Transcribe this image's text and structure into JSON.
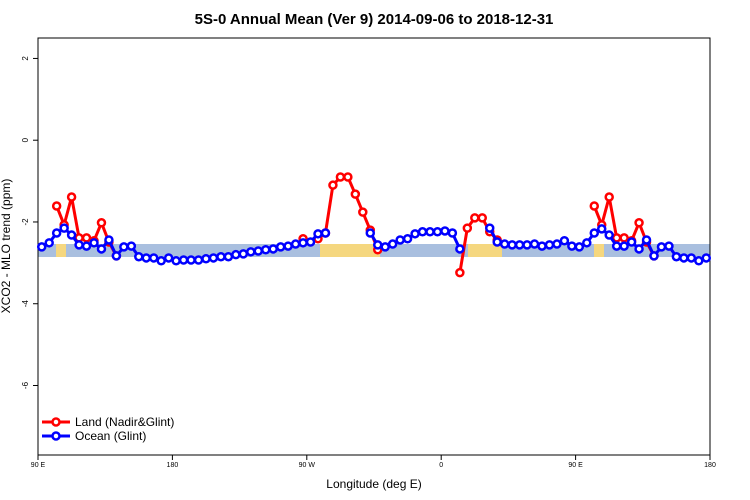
{
  "chart_data": {
    "type": "line",
    "title": "5S-0 Annual Mean (Ver 9)   2014-09-06 to 2018-12-31",
    "x_label": "Longitude (deg E)",
    "y_label": "XCO2 - MLO trend (ppm)",
    "xlim": [
      90,
      540
    ],
    "xticks": [
      {
        "value": 90,
        "label": "90 E"
      },
      180,
      {
        "value": 270,
        "label": "90 W"
      },
      {
        "value": 360,
        "label": "0"
      },
      {
        "value": 450,
        "label": "90 E"
      },
      {
        "value": 540,
        "label": "180"
      }
    ],
    "ylim": [
      -7.7,
      2.5
    ],
    "yticks": [
      -6,
      -4,
      -2,
      0,
      2
    ],
    "legend": "bottom-left",
    "x": [
      92.5,
      97.5,
      102.5,
      107.5,
      112.5,
      117.5,
      122.5,
      127.5,
      132.5,
      137.5,
      142.5,
      147.5,
      152.5,
      157.5,
      162.5,
      167.5,
      172.5,
      177.5,
      182.5,
      187.5,
      192.5,
      197.5,
      202.5,
      207.5,
      212.5,
      217.5,
      222.5,
      227.5,
      232.5,
      237.5,
      242.5,
      247.5,
      252.5,
      257.5,
      262.5,
      267.5,
      272.5,
      277.5,
      282.5,
      287.5,
      292.5,
      297.5,
      302.5,
      307.5,
      312.5,
      317.5,
      322.5,
      327.5,
      332.5,
      337.5,
      342.5,
      347.5,
      352.5,
      357.5,
      362.5,
      367.5,
      372.5,
      377.5,
      382.5,
      387.5,
      392.5,
      397.5,
      402.5,
      407.5,
      412.5,
      417.5,
      422.5,
      427.5,
      432.5,
      437.5,
      442.5,
      447.5,
      452.5,
      457.5,
      462.5,
      467.5,
      472.5,
      477.5,
      482.5,
      487.5,
      492.5,
      497.5,
      502.5,
      507.5,
      512.5,
      517.5,
      522.5,
      527.5,
      532.5,
      537.5
    ],
    "series": [
      {
        "name": "Land (Nadir&Glint)",
        "color": "#ff0000",
        "values": [
          null,
          null,
          -1.61,
          -2.07,
          -1.39,
          -2.39,
          -2.39,
          -2.46,
          -2.02,
          -2.49,
          -2.83,
          null,
          null,
          null,
          null,
          null,
          null,
          null,
          null,
          null,
          null,
          null,
          null,
          null,
          null,
          null,
          null,
          null,
          null,
          null,
          null,
          null,
          null,
          null,
          null,
          -2.41,
          null,
          -2.41,
          -2.27,
          -1.1,
          -0.9,
          -0.9,
          -1.32,
          -1.76,
          -2.2,
          -2.68,
          null,
          null,
          null,
          null,
          null,
          null,
          null,
          null,
          null,
          null,
          -3.24,
          -2.15,
          -1.9,
          -1.9,
          -2.24,
          -2.44,
          null,
          null,
          null,
          null,
          null,
          null,
          null,
          null,
          null,
          null,
          null,
          null,
          -1.61,
          -2.07,
          -1.39,
          -2.39,
          -2.39,
          -2.46,
          -2.02,
          -2.49,
          -2.83,
          null,
          null,
          null,
          null,
          null,
          null,
          null
        ]
      },
      {
        "name": "Ocean (Glint)",
        "color": "#0000ff",
        "values": [
          -2.61,
          -2.51,
          -2.27,
          -2.15,
          -2.32,
          -2.56,
          -2.59,
          -2.51,
          -2.66,
          -2.44,
          -2.83,
          -2.61,
          -2.59,
          -2.85,
          -2.88,
          -2.88,
          -2.95,
          -2.88,
          -2.95,
          -2.93,
          -2.93,
          -2.93,
          -2.9,
          -2.88,
          -2.85,
          -2.85,
          -2.8,
          -2.78,
          -2.73,
          -2.71,
          -2.68,
          -2.66,
          -2.61,
          -2.59,
          -2.54,
          -2.51,
          -2.49,
          -2.29,
          -2.27,
          null,
          null,
          null,
          null,
          null,
          -2.27,
          -2.56,
          -2.61,
          -2.54,
          -2.44,
          -2.41,
          -2.29,
          -2.24,
          -2.24,
          -2.24,
          -2.22,
          -2.27,
          -2.66,
          null,
          null,
          null,
          -2.15,
          -2.49,
          -2.54,
          -2.56,
          -2.56,
          -2.56,
          -2.54,
          -2.59,
          -2.56,
          -2.54,
          -2.46,
          -2.59,
          -2.61,
          -2.51,
          -2.27,
          -2.17,
          -2.32,
          -2.59,
          -2.59,
          -2.49,
          -2.66,
          -2.44,
          -2.83,
          -2.61,
          -2.59,
          -2.85,
          -2.88,
          -2.88,
          -2.95,
          -2.88
        ]
      }
    ]
  }
}
